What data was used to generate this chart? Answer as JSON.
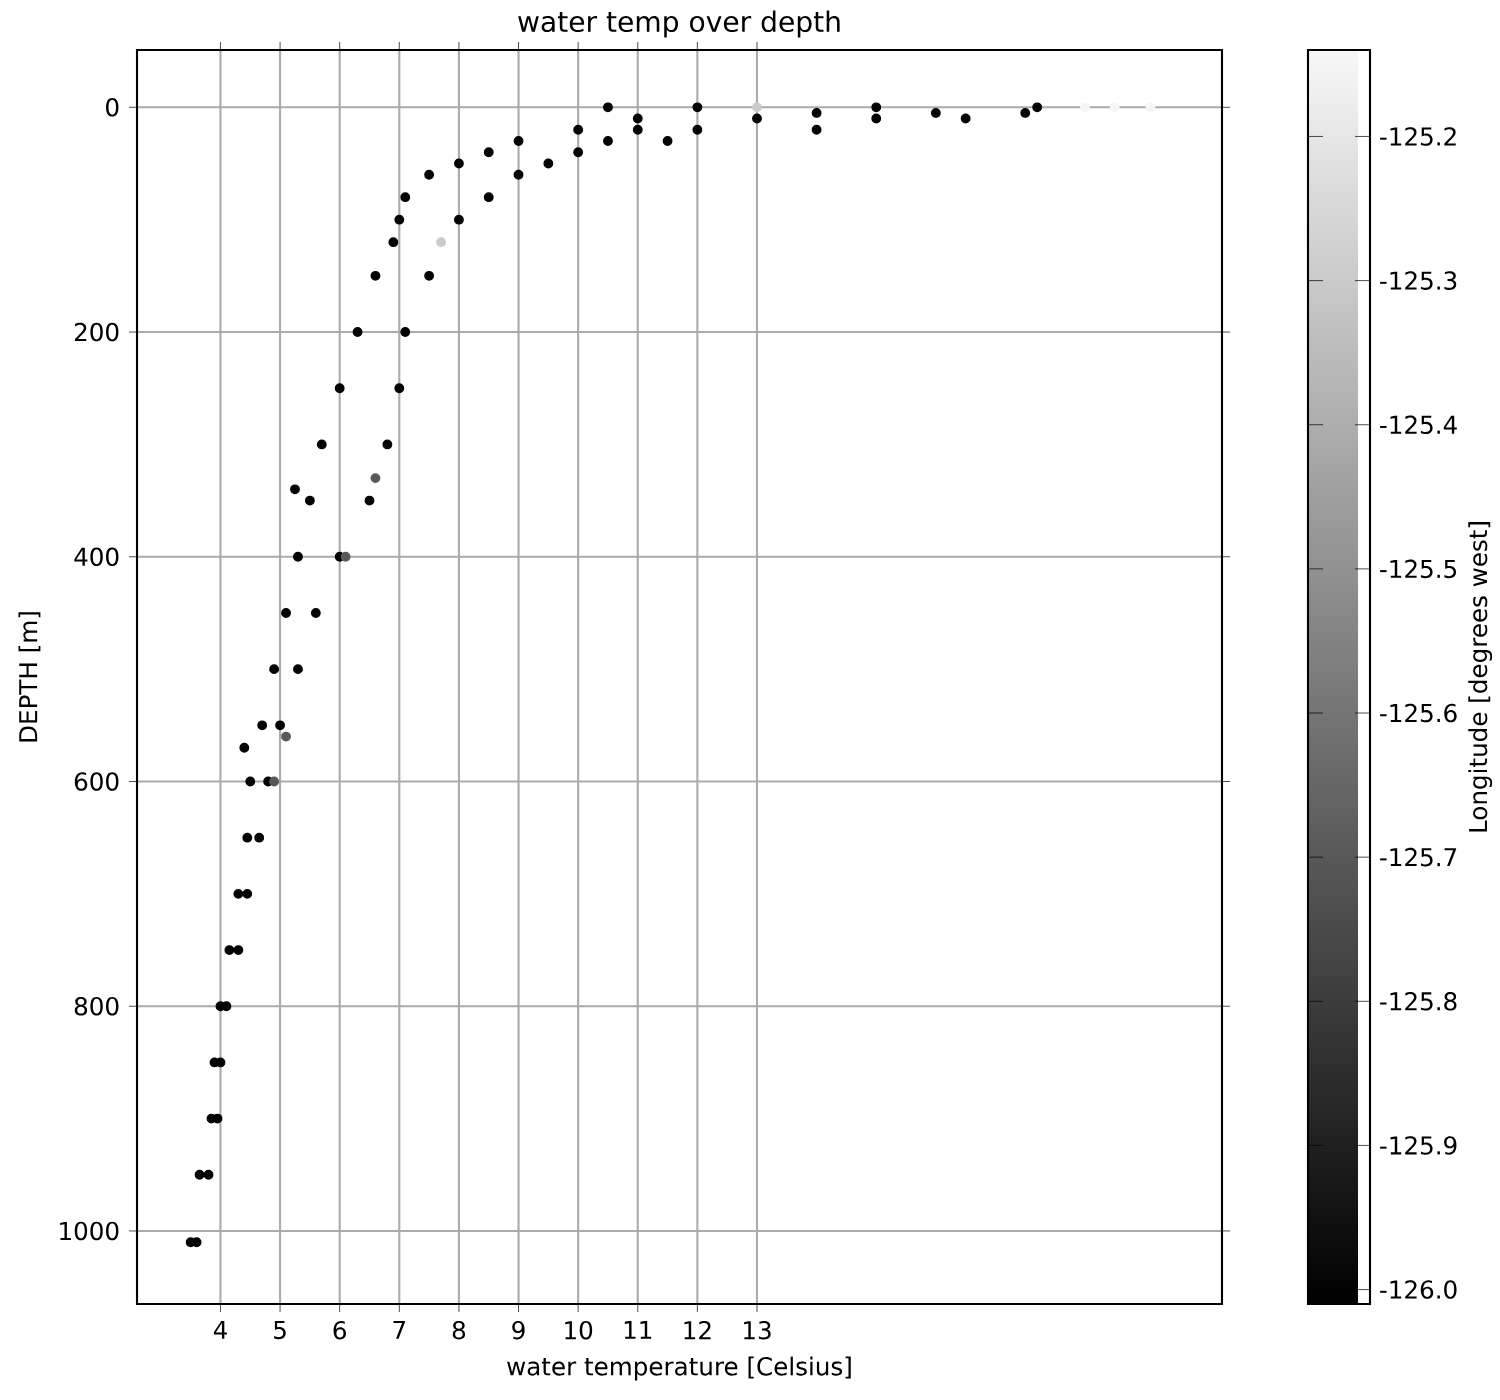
{
  "chart_data": {
    "type": "scatter",
    "title": "water temp over depth",
    "xlabel": "water temperature [Celsius]",
    "ylabel": "DEPTH [m]",
    "clabel": "Longitude [degrees west]",
    "x": [
      3.5,
      3.6,
      3.65,
      3.8,
      3.85,
      3.95,
      3.9,
      4.0,
      4.0,
      4.1,
      4.15,
      4.3,
      4.3,
      4.45,
      4.45,
      4.65,
      4.5,
      4.8,
      4.9,
      4.4,
      4.7,
      5.0,
      5.1,
      4.9,
      5.3,
      5.1,
      5.6,
      5.3,
      6.0,
      6.1,
      5.5,
      6.5,
      6.6,
      5.25,
      5.7,
      6.8,
      6.0,
      7.0,
      6.3,
      7.1,
      6.6,
      7.5,
      6.9,
      7.7,
      7.0,
      8.0,
      7.1,
      8.5,
      7.5,
      9.0,
      8.0,
      9.5,
      8.5,
      10.0,
      9.0,
      10.5,
      11.5,
      10.0,
      11.0,
      12.0,
      14.0,
      11.0,
      13.0,
      15.0,
      16.5,
      14.0,
      16.0,
      17.5,
      10.5,
      12.0,
      13.0,
      15.0,
      17.7,
      18.5,
      19.0,
      19.6
    ],
    "values": [
      1010,
      1010,
      950,
      950,
      900,
      900,
      850,
      850,
      800,
      800,
      750,
      750,
      700,
      700,
      650,
      650,
      600,
      600,
      600,
      570,
      550,
      550,
      560,
      500,
      500,
      450,
      450,
      400,
      400,
      400,
      350,
      350,
      330,
      340,
      300,
      300,
      250,
      250,
      200,
      200,
      150,
      150,
      120,
      120,
      100,
      100,
      80,
      80,
      60,
      60,
      50,
      50,
      40,
      40,
      30,
      30,
      30,
      20,
      20,
      20,
      20,
      10,
      10,
      10,
      10,
      5,
      5,
      5,
      0,
      0,
      0,
      0,
      0,
      0,
      0,
      0
    ],
    "cvalues": [
      -126.0,
      -126.0,
      -126.0,
      -126.0,
      -126.0,
      -126.0,
      -126.0,
      -126.0,
      -126.0,
      -126.0,
      -126.0,
      -126.0,
      -126.0,
      -126.0,
      -126.0,
      -126.0,
      -126.0,
      -126.0,
      -125.7,
      -126.0,
      -126.0,
      -126.0,
      -125.7,
      -126.0,
      -126.0,
      -126.0,
      -126.0,
      -126.0,
      -126.0,
      -125.7,
      -126.0,
      -126.0,
      -125.7,
      -126.0,
      -126.0,
      -126.0,
      -126.0,
      -126.0,
      -126.0,
      -126.0,
      -126.0,
      -126.0,
      -126.0,
      -125.3,
      -126.0,
      -126.0,
      -126.0,
      -126.0,
      -126.0,
      -126.0,
      -126.0,
      -126.0,
      -126.0,
      -126.0,
      -126.0,
      -126.0,
      -126.0,
      -126.0,
      -126.0,
      -126.0,
      -126.0,
      -126.0,
      -126.0,
      -126.0,
      -126.0,
      -126.0,
      -126.0,
      -126.0,
      -126.0,
      -126.0,
      -125.3,
      -126.0,
      -126.0,
      -125.15,
      -125.15,
      -125.15
    ],
    "xlim": [
      2.6,
      20.8
    ],
    "ylim": [
      1065,
      -51
    ],
    "xticks": [
      4,
      5,
      6,
      7,
      8,
      9,
      10,
      11,
      12,
      13
    ],
    "yticks": [
      0,
      200,
      400,
      600,
      800,
      1000
    ],
    "clim": [
      -126.01,
      -125.14
    ],
    "cticks": [
      {
        "value": -126,
        "label": "-126.0"
      },
      -125.9,
      -125.8,
      -125.7,
      -125.6,
      -125.5,
      -125.4,
      -125.3,
      -125.2
    ],
    "grid": true,
    "marker": "circle"
  }
}
